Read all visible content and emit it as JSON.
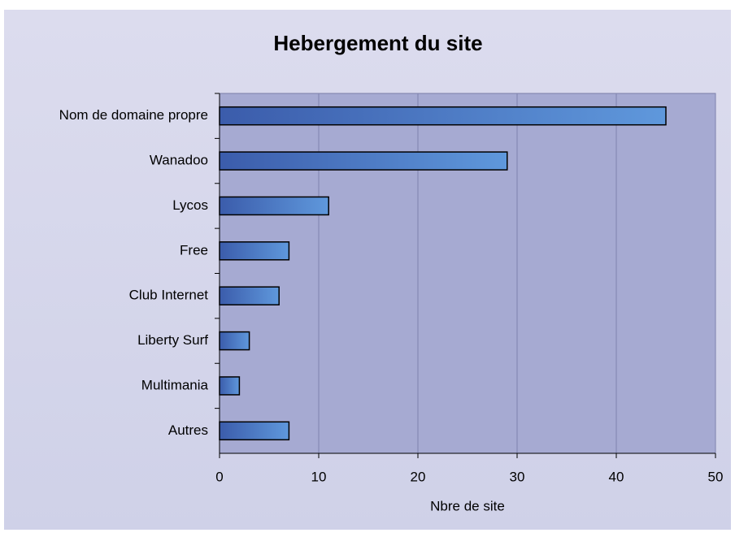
{
  "chart_data": {
    "type": "bar",
    "orientation": "horizontal",
    "title": "Hebergement du site",
    "xlabel": "Nbre de site",
    "categories": [
      "Nom de domaine propre",
      "Wanadoo",
      "Lycos",
      "Free",
      "Club Internet",
      "Liberty Surf",
      "Multimania",
      "Autres"
    ],
    "values": [
      45,
      29,
      11,
      7,
      6,
      3,
      2,
      7
    ],
    "color": "#4a74c4",
    "xlim": [
      0,
      50
    ],
    "xticks": [
      0,
      10,
      20,
      30,
      40,
      50
    ],
    "grid": true
  }
}
